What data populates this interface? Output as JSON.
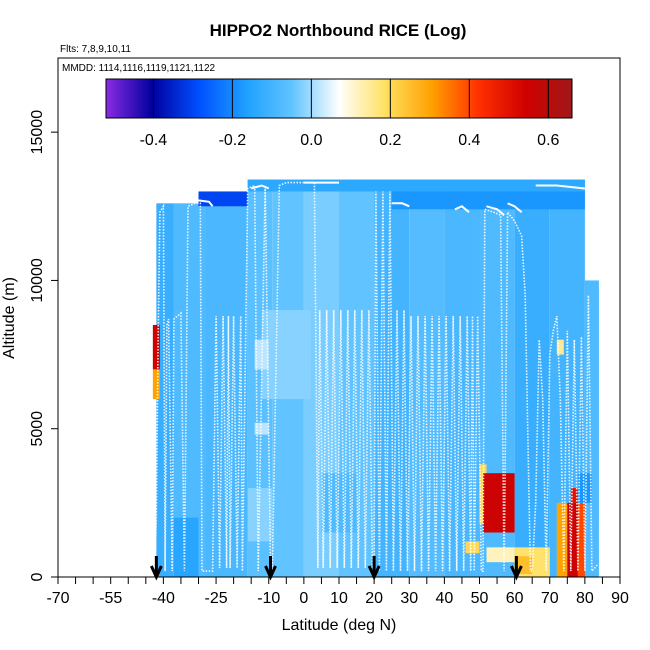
{
  "chart_data": {
    "type": "heatmap",
    "title": "HIPPO2 Northbound RICE (Log)",
    "flights_note": "Flts: 7,8,9,10,11",
    "dates_note": "MMDD: 1114,1116,1119,1121,1122",
    "xlabel": "Latitude (deg N)",
    "ylabel": "Altitude (m)",
    "xlim": [
      -70,
      90
    ],
    "ylim": [
      0,
      17500
    ],
    "x_ticks": [
      -70,
      -55,
      -40,
      -25,
      -10,
      0,
      10,
      20,
      30,
      40,
      50,
      60,
      70,
      80,
      90
    ],
    "x_tick_labels": [
      "-70",
      "-55",
      "-40",
      "-25",
      "-10",
      "0",
      "10",
      "20",
      "30",
      "40",
      "50",
      "60",
      "70",
      "80",
      "90"
    ],
    "x_minor_ticks": [
      -65,
      -60,
      -50,
      -45,
      -35,
      -30,
      -20,
      -15,
      -5,
      5,
      15,
      25,
      35,
      45,
      55,
      65,
      75,
      85
    ],
    "y_ticks": [
      0,
      5000,
      10000,
      15000
    ],
    "y_tick_labels": [
      "0",
      "5000",
      "10000",
      "15000"
    ],
    "colorbar": {
      "range": [
        -0.52,
        0.66
      ],
      "ticks": [
        -0.4,
        -0.2,
        0.0,
        0.2,
        0.4,
        0.6
      ],
      "tick_labels": [
        "-0.4",
        "-0.2",
        "0.0",
        "0.2",
        "0.4",
        "0.6"
      ],
      "colors": [
        "#8a2be2",
        "#0000a0",
        "#0050ff",
        "#1ea0ff",
        "#62c4ff",
        "#ffffff",
        "#ffe060",
        "#ffa000",
        "#ff3000",
        "#d00000",
        "#a01818"
      ]
    },
    "arrow_latitudes": [
      -42,
      -9.5,
      20,
      60.5
    ],
    "background_value": -0.05,
    "cells": [
      {
        "x0": -42,
        "x1": -37,
        "y0": 0,
        "y1": 12600,
        "v": -0.12
      },
      {
        "x0": -37,
        "x1": -28,
        "y0": 0,
        "y1": 12600,
        "v": -0.08
      },
      {
        "x0": -28,
        "x1": -16,
        "y0": 0,
        "y1": 13000,
        "v": -0.09
      },
      {
        "x0": -16,
        "x1": -9,
        "y0": 0,
        "y1": 13400,
        "v": -0.06
      },
      {
        "x0": -9,
        "x1": 0,
        "y0": 0,
        "y1": 13400,
        "v": -0.05
      },
      {
        "x0": 0,
        "x1": 10,
        "y0": 0,
        "y1": 13400,
        "v": -0.03
      },
      {
        "x0": 10,
        "x1": 20,
        "y0": 0,
        "y1": 13400,
        "v": -0.05
      },
      {
        "x0": 20,
        "x1": 30,
        "y0": 0,
        "y1": 13400,
        "v": -0.1
      },
      {
        "x0": 30,
        "x1": 40,
        "y0": 0,
        "y1": 13400,
        "v": -0.07
      },
      {
        "x0": 40,
        "x1": 50,
        "y0": 0,
        "y1": 13400,
        "v": -0.09
      },
      {
        "x0": 50,
        "x1": 60,
        "y0": 0,
        "y1": 13400,
        "v": -0.08
      },
      {
        "x0": 60,
        "x1": 70,
        "y0": 0,
        "y1": 13400,
        "v": -0.12
      },
      {
        "x0": 70,
        "x1": 80,
        "y0": 0,
        "y1": 13400,
        "v": -0.1
      },
      {
        "x0": 80,
        "x1": 84,
        "y0": 0,
        "y1": 10000,
        "v": -0.08
      },
      {
        "x0": -30,
        "x1": -16,
        "y0": 12500,
        "y1": 13000,
        "v": -0.3
      },
      {
        "x0": -16,
        "x1": 80,
        "y0": 13000,
        "y1": 13400,
        "v": -0.14
      },
      {
        "x0": 25,
        "x1": 80,
        "y0": 12400,
        "y1": 13000,
        "v": -0.18
      },
      {
        "x0": -12,
        "x1": 2,
        "y0": 6000,
        "y1": 9000,
        "v": -0.02
      },
      {
        "x0": -14,
        "x1": -10,
        "y0": 7000,
        "y1": 8000,
        "v": 0.02
      },
      {
        "x0": -14,
        "x1": -10,
        "y0": 4800,
        "y1": 5200,
        "v": 0.02
      },
      {
        "x0": -16,
        "x1": -9,
        "y0": 1200,
        "y1": 3000,
        "v": -0.02
      },
      {
        "x0": -37,
        "x1": -30,
        "y0": 0,
        "y1": 2000,
        "v": -0.15
      },
      {
        "x0": 5,
        "x1": 15,
        "y0": 1500,
        "y1": 3500,
        "v": -0.08
      },
      {
        "x0": 50,
        "x1": 52,
        "y0": 1800,
        "y1": 3800,
        "v": 0.2
      },
      {
        "x0": 51,
        "x1": 60,
        "y0": 1500,
        "y1": 3500,
        "v": 0.55
      },
      {
        "x0": 46,
        "x1": 50,
        "y0": 800,
        "y1": 1200,
        "v": 0.2
      },
      {
        "x0": 52,
        "x1": 60,
        "y0": 500,
        "y1": 1000,
        "v": 0.12
      },
      {
        "x0": 60,
        "x1": 70,
        "y0": 0,
        "y1": 1000,
        "v": 0.18
      },
      {
        "x0": 60,
        "x1": 65,
        "y0": 100,
        "y1": 700,
        "v": 0.25
      },
      {
        "x0": 72,
        "x1": 75,
        "y0": 0,
        "y1": 2500,
        "v": 0.3
      },
      {
        "x0": 75,
        "x1": 78,
        "y0": 0,
        "y1": 2500,
        "v": 0.55
      },
      {
        "x0": 78,
        "x1": 80,
        "y0": 0,
        "y1": 2500,
        "v": 0.4
      },
      {
        "x0": 76,
        "x1": 78,
        "y0": 2500,
        "y1": 3000,
        "v": 0.5
      },
      {
        "x0": 72,
        "x1": 74,
        "y0": 7500,
        "y1": 8000,
        "v": 0.15
      },
      {
        "x0": 78,
        "x1": 82,
        "y0": 2500,
        "y1": 3500,
        "v": -0.18
      },
      {
        "x0": -43,
        "x1": -41,
        "y0": 7000,
        "y1": 8500,
        "v": 0.55
      },
      {
        "x0": -43,
        "x1": -41,
        "y0": 6000,
        "y1": 7000,
        "v": 0.3
      }
    ],
    "flight_track": [
      [
        -42.5,
        50
      ],
      [
        -42,
        2000
      ],
      [
        -41.5,
        8000
      ],
      [
        -41,
        12300
      ],
      [
        -40,
        12500
      ],
      [
        -39.5,
        200
      ],
      [
        -39,
        8500
      ],
      [
        -38.5,
        8700
      ],
      [
        -37.5,
        200
      ],
      [
        -37,
        8700
      ],
      [
        -36,
        8800
      ],
      [
        -35,
        8900
      ],
      [
        -34,
        200
      ],
      [
        -33,
        12500
      ],
      [
        -31,
        12600
      ],
      [
        -29.5,
        12600
      ],
      [
        -29,
        200
      ],
      [
        -26,
        200
      ],
      [
        -25,
        8800
      ],
      [
        -24,
        300
      ],
      [
        -23,
        8800
      ],
      [
        -22,
        300
      ],
      [
        -21.5,
        8800
      ],
      [
        -21,
        300
      ],
      [
        -20,
        8800
      ],
      [
        -19,
        300
      ],
      [
        -18,
        8800
      ],
      [
        -17.5,
        200
      ],
      [
        -16,
        13100
      ],
      [
        -14,
        13200
      ],
      [
        -13,
        200
      ],
      [
        -11,
        13200
      ],
      [
        -9.5,
        400
      ],
      [
        -9,
        200
      ],
      [
        -7,
        13200
      ],
      [
        -5,
        13300
      ],
      [
        -1,
        13300
      ],
      [
        1,
        13300
      ],
      [
        3,
        13300
      ],
      [
        4,
        300
      ],
      [
        4.5,
        9000
      ],
      [
        5.5,
        300
      ],
      [
        6.5,
        9000
      ],
      [
        7.5,
        300
      ],
      [
        8.5,
        9000
      ],
      [
        9.5,
        300
      ],
      [
        10.5,
        9000
      ],
      [
        11.5,
        300
      ],
      [
        12.5,
        9000
      ],
      [
        13.5,
        300
      ],
      [
        14.5,
        9000
      ],
      [
        15.5,
        300
      ],
      [
        16.5,
        9000
      ],
      [
        17.5,
        300
      ],
      [
        18.5,
        9000
      ],
      [
        19.5,
        300
      ],
      [
        20,
        500
      ],
      [
        20.5,
        13000
      ],
      [
        21.5,
        200
      ],
      [
        22.5,
        13000
      ],
      [
        23.5,
        200
      ],
      [
        24.5,
        13000
      ],
      [
        25.5,
        200
      ],
      [
        26.5,
        9000
      ],
      [
        27.5,
        200
      ],
      [
        28.5,
        9000
      ],
      [
        29.5,
        200
      ],
      [
        30.5,
        8800
      ],
      [
        31.5,
        200
      ],
      [
        32.5,
        8800
      ],
      [
        33.5,
        200
      ],
      [
        34.5,
        8800
      ],
      [
        35.5,
        200
      ],
      [
        36.5,
        8800
      ],
      [
        37.5,
        200
      ],
      [
        38.5,
        8800
      ],
      [
        39.5,
        200
      ],
      [
        40.5,
        8800
      ],
      [
        41.5,
        200
      ],
      [
        42.5,
        8800
      ],
      [
        43.5,
        200
      ],
      [
        44.5,
        8800
      ],
      [
        45.5,
        200
      ],
      [
        46.5,
        8800
      ],
      [
        47.5,
        200
      ],
      [
        48,
        8800
      ],
      [
        48.5,
        200
      ],
      [
        49.5,
        8800
      ],
      [
        50.5,
        200
      ],
      [
        51,
        200
      ],
      [
        51.5,
        12400
      ],
      [
        54,
        12300
      ],
      [
        56,
        12200
      ],
      [
        57,
        200
      ],
      [
        58,
        12300
      ],
      [
        60,
        12000
      ],
      [
        62,
        11500
      ],
      [
        63,
        9500
      ],
      [
        64.5,
        200
      ],
      [
        65,
        200
      ],
      [
        66,
        2500
      ],
      [
        67,
        8000
      ],
      [
        68,
        6000
      ],
      [
        69,
        200
      ],
      [
        70,
        7500
      ],
      [
        71,
        8300
      ],
      [
        72,
        8800
      ],
      [
        73,
        6000
      ],
      [
        74,
        200
      ],
      [
        75,
        8300
      ],
      [
        76,
        200
      ],
      [
        77,
        8000
      ],
      [
        78,
        200
      ],
      [
        79,
        8100
      ],
      [
        80,
        200
      ],
      [
        81,
        9500
      ],
      [
        82,
        200
      ],
      [
        83.5,
        400
      ]
    ],
    "top_tracks": [
      [
        [
          -30,
          12700
        ],
        [
          -27,
          12650
        ],
        [
          -26,
          12500
        ]
      ],
      [
        [
          -15,
          13100
        ],
        [
          -12,
          13200
        ],
        [
          -10,
          13100
        ]
      ],
      [
        [
          0,
          13300
        ],
        [
          5,
          13300
        ],
        [
          10,
          13300
        ]
      ],
      [
        [
          25,
          12600
        ],
        [
          28,
          12600
        ],
        [
          30,
          12500
        ]
      ],
      [
        [
          43,
          12400
        ],
        [
          45,
          12500
        ],
        [
          47,
          12300
        ]
      ],
      [
        [
          52,
          12500
        ],
        [
          55,
          12400
        ],
        [
          57,
          12200
        ]
      ],
      [
        [
          58,
          12600
        ],
        [
          60,
          12500
        ],
        [
          62,
          12300
        ]
      ],
      [
        [
          66,
          13200
        ],
        [
          72,
          13200
        ],
        [
          80,
          13100
        ]
      ]
    ]
  }
}
